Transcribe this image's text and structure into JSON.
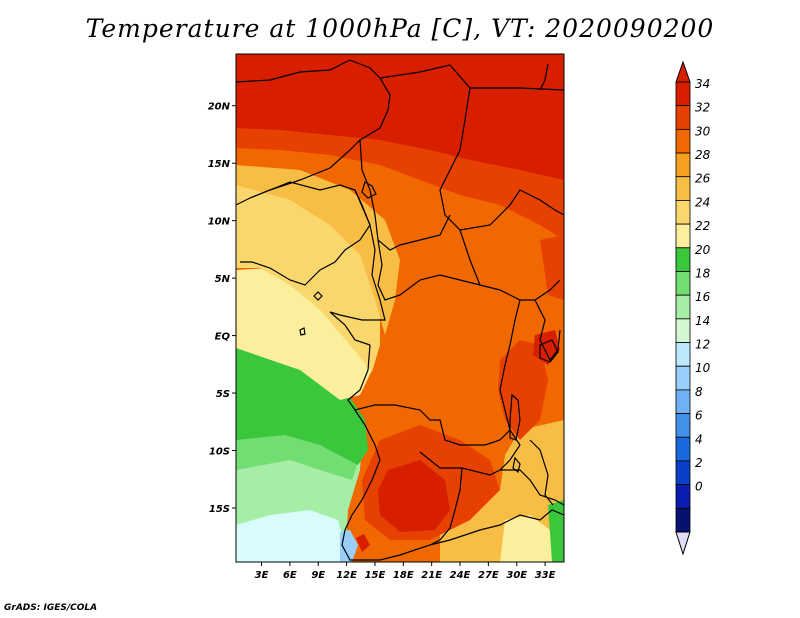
{
  "title": "Temperature at 1000hPa [C], VT: 2020090200",
  "footer": "GrADS: IGES/COLA",
  "map": {
    "lat_labels": [
      "20N",
      "15N",
      "10N",
      "5N",
      "EQ",
      "5S",
      "10S",
      "15S"
    ],
    "lat_values": [
      20,
      15,
      10,
      5,
      0,
      -5,
      -10,
      -15
    ],
    "lon_labels": [
      "3E",
      "6E",
      "9E",
      "12E",
      "15E",
      "18E",
      "21E",
      "24E",
      "27E",
      "30E",
      "33E"
    ],
    "lon_values": [
      3,
      6,
      9,
      12,
      15,
      18,
      21,
      24,
      27,
      30,
      33
    ],
    "lon_range": [
      0.3,
      35
    ],
    "lat_range": [
      -19.7,
      24.5
    ]
  },
  "colorbar": {
    "labels": [
      "34",
      "32",
      "30",
      "28",
      "26",
      "24",
      "22",
      "20",
      "18",
      "16",
      "14",
      "12",
      "10",
      "8",
      "6",
      "4",
      "2",
      "0"
    ],
    "colors": [
      "#d71f00",
      "#e64100",
      "#f26800",
      "#f6a020",
      "#f8bd45",
      "#fad76d",
      "#fbef9e",
      "#3bc73b",
      "#72de72",
      "#a6eda6",
      "#d2f7d2",
      "#bce9fb",
      "#99cffa",
      "#6fb1f4",
      "#4290ea",
      "#1968de",
      "#0a40c5",
      "#0a1db0",
      "#081070"
    ],
    "over_color": "#d71f00",
    "under_color": "#e2dcf7"
  },
  "colors": {
    "red": "#d71f00",
    "dark_orange": "#e64100",
    "orange": "#f26800",
    "light_orange": "#f6a020",
    "amber": "#f8bd45",
    "yellow": "#fad76d",
    "pale_yellow": "#fbef9e",
    "green": "#3bc73b",
    "light_green": "#72de72",
    "pale_green": "#a6eda6",
    "mint": "#d2f7d2",
    "cyan_white": "#d8fbfb",
    "light_blue": "#99cffa"
  }
}
